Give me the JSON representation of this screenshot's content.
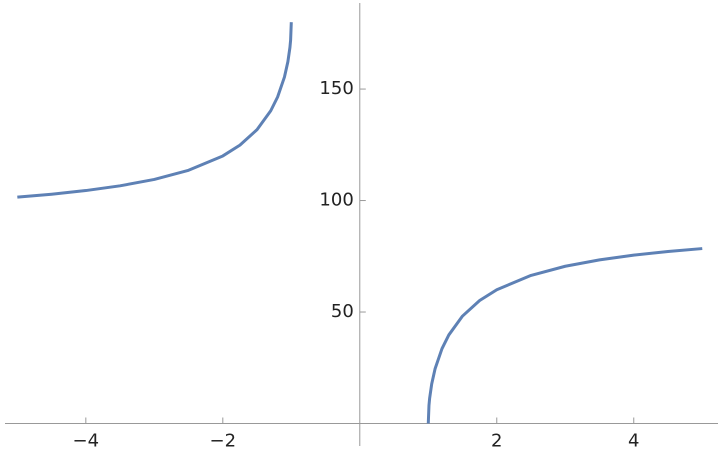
{
  "chart_data": {
    "type": "line",
    "x": [
      -5,
      -4.5,
      -4,
      -3.5,
      -3,
      -2.5,
      -2,
      -1.75,
      -1.5,
      -1.3,
      -1.2,
      -1.1,
      -1.05,
      -1.02,
      -1.01,
      -1,
      0,
      1,
      1.01,
      1.02,
      1.05,
      1.1,
      1.2,
      1.3,
      1.5,
      1.75,
      2,
      2.5,
      3,
      3.5,
      4,
      4.5,
      5
    ],
    "series": [
      {
        "color": "#5e81b5",
        "values": [
          101.54,
          102.84,
          104.48,
          106.6,
          109.47,
          113.58,
          120,
          124.85,
          131.81,
          140.28,
          146.44,
          155.38,
          162.25,
          168.64,
          171.93,
          180,
          null,
          0,
          8.07,
          11.36,
          17.75,
          24.62,
          33.56,
          39.72,
          48.19,
          55.15,
          60,
          66.42,
          70.53,
          73.4,
          75.52,
          77.16,
          78.46
        ]
      }
    ],
    "xlim": [
      -5.18,
      5.23
    ],
    "ylim": [
      0,
      188.6
    ],
    "xticks": [
      {
        "value": -4,
        "label": "−4"
      },
      {
        "value": -2,
        "label": "−2"
      },
      2,
      4
    ],
    "yticks": [
      50,
      100,
      150
    ]
  }
}
